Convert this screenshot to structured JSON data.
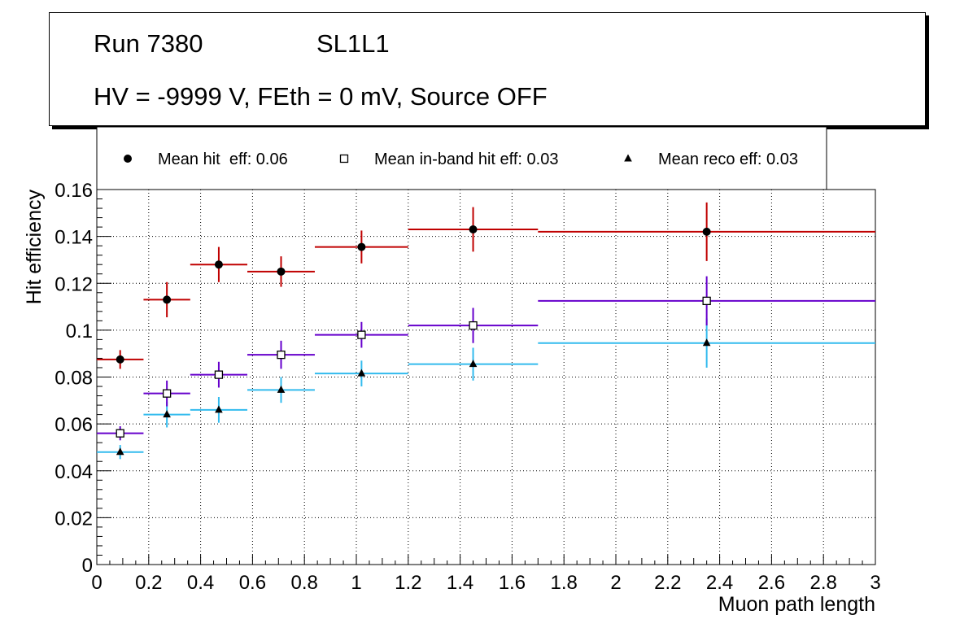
{
  "header": {
    "run_label": "Run 7380",
    "layer_label": "SL1L1",
    "conditions": "HV = -9999 V, FEth = 0 mV, Source OFF"
  },
  "colors": {
    "hit": "#c00000",
    "inband": "#6600cc",
    "reco": "#33bbee",
    "marker": "#000000"
  },
  "chart_data": {
    "type": "scatter",
    "xlabel": "Muon path length",
    "ylabel": "Hit efficiency",
    "xlim": [
      0,
      3
    ],
    "ylim": [
      0,
      0.16
    ],
    "xticks": [
      0,
      0.2,
      0.4,
      0.6,
      0.8,
      1,
      1.2,
      1.4,
      1.6,
      1.8,
      2,
      2.2,
      2.4,
      2.6,
      2.8,
      3
    ],
    "xtick_labels": [
      "0",
      "0.2",
      "0.4",
      "0.6",
      "0.8",
      "1",
      "1.2",
      "1.4",
      "1.6",
      "1.8",
      "2",
      "2.2",
      "2.4",
      "2.6",
      "2.8",
      "3"
    ],
    "yticks": [
      0,
      0.02,
      0.04,
      0.06,
      0.08,
      0.1,
      0.12,
      0.14,
      0.16
    ],
    "ytick_labels": [
      "0",
      "0.02",
      "0.04",
      "0.06",
      "0.08",
      "0.1",
      "0.12",
      "0.14",
      "0.16"
    ],
    "grid": true,
    "legend_position": "top",
    "bins": [
      [
        0.0,
        0.18
      ],
      [
        0.18,
        0.36
      ],
      [
        0.36,
        0.58
      ],
      [
        0.58,
        0.84
      ],
      [
        0.84,
        1.2
      ],
      [
        1.2,
        1.7
      ],
      [
        1.7,
        3.0
      ]
    ],
    "series": [
      {
        "name": "Mean hit  eff: 0.06",
        "marker": "circle",
        "color_key": "hit",
        "x": [
          0.09,
          0.27,
          0.47,
          0.71,
          1.02,
          1.45,
          2.35
        ],
        "y": [
          0.0875,
          0.113,
          0.128,
          0.125,
          0.1355,
          0.143,
          0.142
        ],
        "yerr": [
          0.004,
          0.0075,
          0.0075,
          0.0065,
          0.007,
          0.0095,
          0.0125
        ]
      },
      {
        "name": "Mean in-band hit eff: 0.03",
        "marker": "open-square",
        "color_key": "inband",
        "x": [
          0.09,
          0.27,
          0.47,
          0.71,
          1.02,
          1.45,
          2.35
        ],
        "y": [
          0.056,
          0.073,
          0.081,
          0.0895,
          0.098,
          0.102,
          0.1125
        ],
        "yerr": [
          0.003,
          0.0055,
          0.0055,
          0.006,
          0.0055,
          0.0075,
          0.0105
        ]
      },
      {
        "name": "Mean reco eff: 0.03",
        "marker": "triangle",
        "color_key": "reco",
        "x": [
          0.09,
          0.27,
          0.47,
          0.71,
          1.02,
          1.45,
          2.35
        ],
        "y": [
          0.048,
          0.064,
          0.066,
          0.0745,
          0.0815,
          0.0855,
          0.0945
        ],
        "yerr": [
          0.003,
          0.0055,
          0.0055,
          0.0055,
          0.0055,
          0.007,
          0.0105
        ]
      }
    ]
  }
}
